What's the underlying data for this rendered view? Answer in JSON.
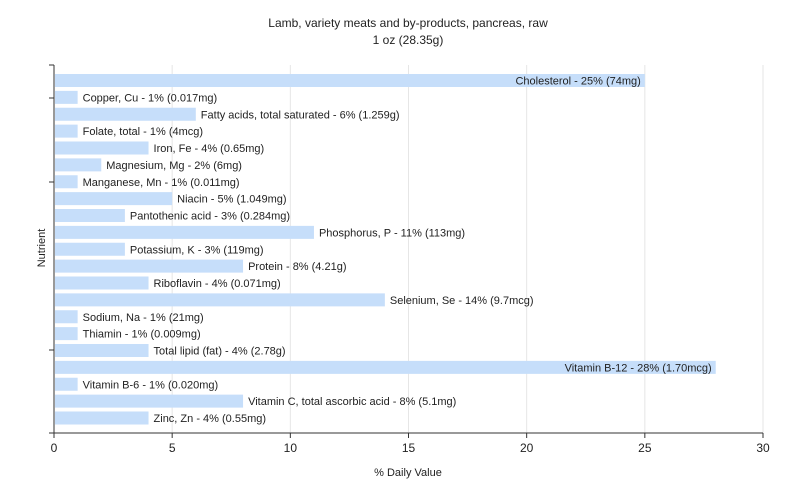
{
  "chart_data": {
    "type": "bar",
    "orientation": "horizontal",
    "title": "Lamb, variety meats and by-products, pancreas, raw",
    "subtitle": "1 oz (28.35g)",
    "xlabel": "% Daily Value",
    "ylabel": "Nutrient",
    "xlim": [
      0,
      30
    ],
    "xticks": [
      "0",
      "5",
      "10",
      "15",
      "20",
      "25",
      "30"
    ],
    "grid": true,
    "bar_color": "#c6defa",
    "gridline_color": "#e6e6e6",
    "bars": [
      {
        "label": "Cholesterol - 25% (74mg)",
        "value": 25
      },
      {
        "label": "Copper, Cu - 1% (0.017mg)",
        "value": 1
      },
      {
        "label": "Fatty acids, total saturated - 6% (1.259g)",
        "value": 6
      },
      {
        "label": "Folate, total - 1% (4mcg)",
        "value": 1
      },
      {
        "label": "Iron, Fe - 4% (0.65mg)",
        "value": 4
      },
      {
        "label": "Magnesium, Mg - 2% (6mg)",
        "value": 2
      },
      {
        "label": "Manganese, Mn - 1% (0.011mg)",
        "value": 1
      },
      {
        "label": "Niacin - 5% (1.049mg)",
        "value": 5
      },
      {
        "label": "Pantothenic acid - 3% (0.284mg)",
        "value": 3
      },
      {
        "label": "Phosphorus, P - 11% (113mg)",
        "value": 11
      },
      {
        "label": "Potassium, K - 3% (119mg)",
        "value": 3
      },
      {
        "label": "Protein - 8% (4.21g)",
        "value": 8
      },
      {
        "label": "Riboflavin - 4% (0.071mg)",
        "value": 4
      },
      {
        "label": "Selenium, Se - 14% (9.7mcg)",
        "value": 14
      },
      {
        "label": "Sodium, Na - 1% (21mg)",
        "value": 1
      },
      {
        "label": "Thiamin - 1% (0.009mg)",
        "value": 1
      },
      {
        "label": "Total lipid (fat) - 4% (2.78g)",
        "value": 4
      },
      {
        "label": "Vitamin B-12 - 28% (1.70mcg)",
        "value": 28
      },
      {
        "label": "Vitamin B-6 - 1% (0.020mg)",
        "value": 1
      },
      {
        "label": "Vitamin C, total ascorbic acid - 8% (5.1mg)",
        "value": 8
      },
      {
        "label": "Zinc, Zn - 4% (0.55mg)",
        "value": 4
      }
    ]
  }
}
